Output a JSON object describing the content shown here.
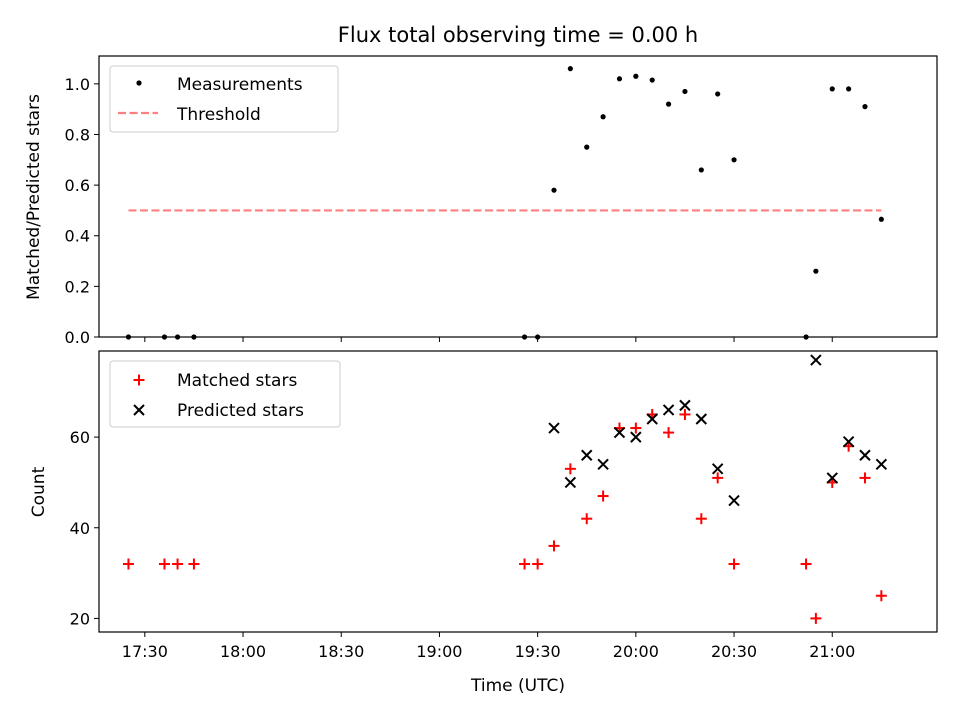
{
  "title": "Flux total observing time = 0.00 h",
  "colors": {
    "measurements": "#000000",
    "threshold": "#ff7f7f",
    "matched": "#ff0000",
    "predicted": "#000000"
  },
  "chart_data": [
    {
      "type": "scatter",
      "ylabel": "Matched/Predicted stars",
      "ylim": [
        0,
        1.11
      ],
      "yticks": [
        "0.0",
        "0.2",
        "0.4",
        "0.6",
        "0.8",
        "1.0"
      ],
      "xlim": [
        "17:16",
        "21:32"
      ],
      "grid": false,
      "legend_position": "upper-left",
      "legend": [
        {
          "label": "Measurements",
          "marker": "dot"
        },
        {
          "label": "Threshold",
          "marker": "dashed-line"
        }
      ],
      "threshold": {
        "name": "Threshold",
        "value": 0.5,
        "x": [
          "17:25",
          "21:15"
        ]
      },
      "series": [
        {
          "name": "Measurements",
          "points": [
            [
              "17:25",
              0.0
            ],
            [
              "17:36",
              0.0
            ],
            [
              "17:40",
              0.0
            ],
            [
              "17:45",
              0.0
            ],
            [
              "19:26",
              0.0
            ],
            [
              "19:30",
              0.0
            ],
            [
              "19:35",
              0.58
            ],
            [
              "19:40",
              1.06
            ],
            [
              "19:45",
              0.75
            ],
            [
              "19:50",
              0.87
            ],
            [
              "19:55",
              1.02
            ],
            [
              "20:00",
              1.03
            ],
            [
              "20:05",
              1.015
            ],
            [
              "20:10",
              0.92
            ],
            [
              "20:15",
              0.97
            ],
            [
              "20:20",
              0.66
            ],
            [
              "20:25",
              0.96
            ],
            [
              "20:30",
              0.7
            ],
            [
              "20:52",
              0.0
            ],
            [
              "20:55",
              0.26
            ],
            [
              "21:00",
              0.98
            ],
            [
              "21:05",
              0.98
            ],
            [
              "21:10",
              0.91
            ],
            [
              "21:15",
              0.465
            ]
          ]
        }
      ]
    },
    {
      "type": "scatter",
      "xlabel": "Time (UTC)",
      "ylabel": "Count",
      "ylim": [
        17,
        79
      ],
      "yticks": [
        "20",
        "40",
        "60"
      ],
      "xlim": [
        "17:16",
        "21:32"
      ],
      "xticks": [
        "17:30",
        "18:00",
        "18:30",
        "19:00",
        "19:30",
        "20:00",
        "20:30",
        "21:00"
      ],
      "grid": false,
      "legend_position": "upper-left",
      "legend": [
        {
          "label": "Matched stars",
          "marker": "plus"
        },
        {
          "label": "Predicted stars",
          "marker": "x"
        }
      ],
      "series": [
        {
          "name": "Matched stars",
          "points": [
            [
              "17:25",
              32
            ],
            [
              "17:36",
              32
            ],
            [
              "17:40",
              32
            ],
            [
              "17:45",
              32
            ],
            [
              "19:26",
              32
            ],
            [
              "19:30",
              32
            ],
            [
              "19:35",
              36
            ],
            [
              "19:40",
              53
            ],
            [
              "19:45",
              42
            ],
            [
              "19:50",
              47
            ],
            [
              "19:55",
              62
            ],
            [
              "20:00",
              62
            ],
            [
              "20:05",
              65
            ],
            [
              "20:10",
              61
            ],
            [
              "20:15",
              65
            ],
            [
              "20:20",
              42
            ],
            [
              "20:25",
              51
            ],
            [
              "20:30",
              32
            ],
            [
              "20:52",
              32
            ],
            [
              "20:55",
              20
            ],
            [
              "21:00",
              50
            ],
            [
              "21:05",
              58
            ],
            [
              "21:10",
              51
            ],
            [
              "21:15",
              25
            ]
          ]
        },
        {
          "name": "Predicted stars",
          "points": [
            [
              "19:35",
              62
            ],
            [
              "19:40",
              50
            ],
            [
              "19:45",
              56
            ],
            [
              "19:50",
              54
            ],
            [
              "19:55",
              61
            ],
            [
              "20:00",
              60
            ],
            [
              "20:05",
              64
            ],
            [
              "20:10",
              66
            ],
            [
              "20:15",
              67
            ],
            [
              "20:20",
              64
            ],
            [
              "20:25",
              53
            ],
            [
              "20:30",
              46
            ],
            [
              "20:55",
              77
            ],
            [
              "21:00",
              51
            ],
            [
              "21:05",
              59
            ],
            [
              "21:10",
              56
            ],
            [
              "21:15",
              54
            ]
          ]
        }
      ]
    }
  ]
}
